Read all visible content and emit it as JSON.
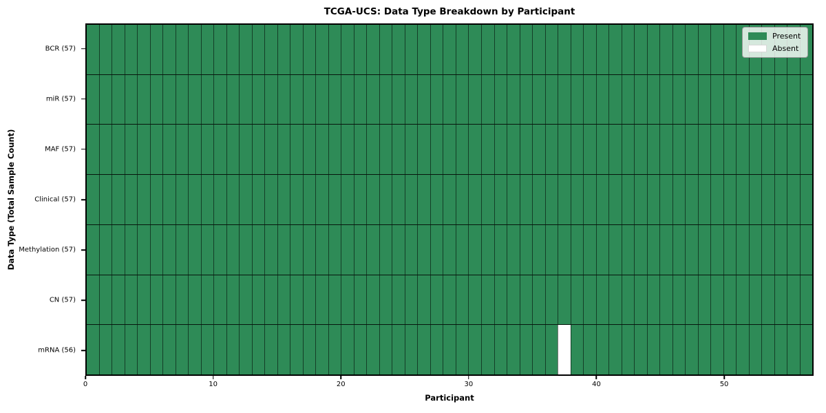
{
  "chart_data": {
    "type": "heatmap",
    "title": "TCGA-UCS: Data Type Breakdown by Participant",
    "xlabel": "Participant",
    "ylabel": "Data Type (Total Sample Count)",
    "n_participants": 57,
    "xlim": [
      0,
      57
    ],
    "x_ticks": [
      0,
      10,
      20,
      30,
      40,
      50
    ],
    "rows": [
      {
        "label": "BCR (57)",
        "present_count": 57,
        "absent_participants": []
      },
      {
        "label": "miR (57)",
        "present_count": 57,
        "absent_participants": []
      },
      {
        "label": "MAF (57)",
        "present_count": 57,
        "absent_participants": []
      },
      {
        "label": "Clinical (57)",
        "present_count": 57,
        "absent_participants": []
      },
      {
        "label": "Methylation (57)",
        "present_count": 57,
        "absent_participants": []
      },
      {
        "label": "CN (57)",
        "present_count": 57,
        "absent_participants": []
      },
      {
        "label": "mRNA (56)",
        "present_count": 56,
        "absent_participants": [
          37
        ]
      }
    ],
    "legend": [
      {
        "label": "Present",
        "color": "#2e8b57"
      },
      {
        "label": "Absent",
        "color": "#ffffff"
      }
    ],
    "legend_position": "upper right",
    "colors": {
      "present": "#2e8b57",
      "absent": "#ffffff",
      "cell_edge": "#000000"
    },
    "grid": "cell-borders"
  }
}
